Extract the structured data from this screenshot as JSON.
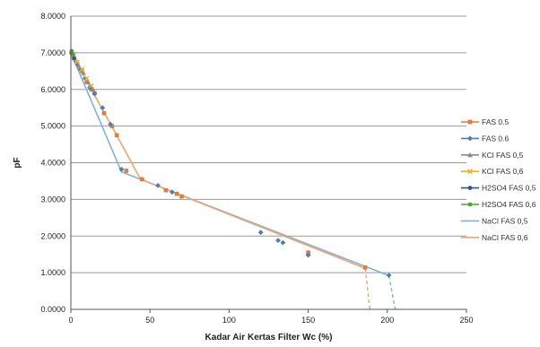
{
  "chart_data": {
    "type": "scatter",
    "title": "",
    "xlabel": "Kadar Air Kertas Filter Wc (%)",
    "ylabel": "pF",
    "xlim": [
      0,
      250
    ],
    "ylim": [
      0,
      8
    ],
    "x_ticks": [
      0,
      50,
      100,
      150,
      200,
      250
    ],
    "x_tick_labels": [
      "0",
      "50",
      "100",
      "150",
      "200",
      "250"
    ],
    "y_ticks": [
      0,
      1,
      2,
      3,
      4,
      5,
      6,
      7,
      8
    ],
    "y_tick_labels": [
      "0.0000",
      "1.0000",
      "2.0000",
      "3.0000",
      "4.0000",
      "5.0000",
      "6.0000",
      "7.0000",
      "8.0000"
    ],
    "grid": "horizontal",
    "legend_position": "right",
    "series": [
      {
        "name": "FAS 0.5",
        "color": "#e07b39",
        "marker": "square",
        "points": [
          [
            0.5,
            7.0
          ],
          [
            2,
            6.85
          ],
          [
            4,
            6.7
          ],
          [
            7,
            6.5
          ],
          [
            10,
            6.2
          ],
          [
            13,
            6.0
          ],
          [
            15,
            5.9
          ],
          [
            21,
            5.35
          ],
          [
            26,
            5.0
          ],
          [
            29,
            4.75
          ],
          [
            35,
            3.78
          ],
          [
            45,
            3.55
          ],
          [
            60,
            3.25
          ],
          [
            67,
            3.15
          ],
          [
            70,
            3.08
          ],
          [
            150,
            1.55
          ],
          [
            186,
            1.14
          ]
        ]
      },
      {
        "name": "FAS 0.6",
        "color": "#4a7ebb",
        "marker": "diamond",
        "points": [
          [
            0.5,
            7.0
          ],
          [
            2,
            6.85
          ],
          [
            4,
            6.7
          ],
          [
            6,
            6.55
          ],
          [
            9,
            6.3
          ],
          [
            12,
            6.05
          ],
          [
            15,
            5.88
          ],
          [
            20,
            5.5
          ],
          [
            25,
            5.05
          ],
          [
            32,
            3.82
          ],
          [
            55,
            3.38
          ],
          [
            64,
            3.2
          ],
          [
            120,
            2.1
          ],
          [
            131,
            1.88
          ],
          [
            134,
            1.82
          ],
          [
            150,
            1.48
          ],
          [
            201,
            0.93
          ]
        ]
      },
      {
        "name": "KCl FAS 0,5",
        "color": "#8c8c8c",
        "marker": "triangle",
        "points": [
          [
            1,
            6.95
          ],
          [
            3,
            6.8
          ],
          [
            5,
            6.65
          ],
          [
            8,
            6.45
          ],
          [
            11,
            6.2
          ],
          [
            14,
            6.0
          ]
        ]
      },
      {
        "name": "KCl FAS 0,6",
        "color": "#f0b323",
        "marker": "x",
        "points": [
          [
            1.5,
            6.9
          ],
          [
            4,
            6.75
          ],
          [
            7,
            6.55
          ],
          [
            10,
            6.3
          ],
          [
            13,
            6.1
          ]
        ]
      },
      {
        "name": "H2SO4 FAS 0,5",
        "color": "#2e5597",
        "marker": "circle",
        "points": [
          [
            0.5,
            7.0
          ],
          [
            2,
            6.85
          ]
        ]
      },
      {
        "name": "H2SO4 FAS 0,6",
        "color": "#4ea72e",
        "marker": "circle",
        "points": [
          [
            0.5,
            7.05
          ],
          [
            1.5,
            6.95
          ]
        ]
      },
      {
        "name": "NaCl FAS 0,5",
        "color": "#7fb3e0",
        "marker": "line",
        "line": [
          [
            0,
            7.0
          ],
          [
            32,
            3.75
          ],
          [
            201,
            0.92
          ]
        ],
        "dashed": [
          [
            201,
            0.92
          ],
          [
            205,
            0.0
          ]
        ]
      },
      {
        "name": "NaCl FAS 0,6",
        "color": "#f4a46e",
        "marker": "line",
        "line": [
          [
            0,
            7.0
          ],
          [
            29,
            4.75
          ],
          [
            44,
            3.55
          ],
          [
            186,
            1.12
          ]
        ],
        "dashed": [
          [
            186,
            1.12
          ],
          [
            189,
            0.0
          ]
        ]
      }
    ]
  }
}
